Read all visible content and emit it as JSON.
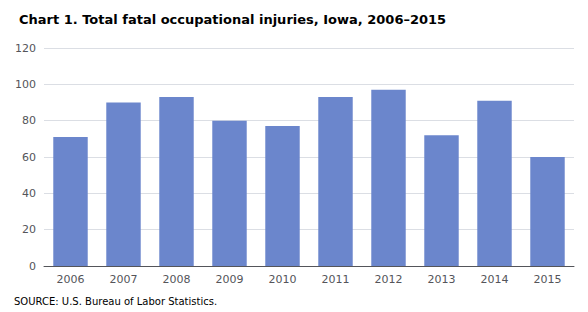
{
  "chart_data": {
    "type": "bar",
    "title": "Chart 1. Total fatal occupational injuries, Iowa, 2006–2015",
    "source": "SOURCE: U.S. Bureau of Labor Statistics.",
    "categories": [
      "2006",
      "2007",
      "2008",
      "2009",
      "2010",
      "2011",
      "2012",
      "2013",
      "2014",
      "2015"
    ],
    "values": [
      71,
      90,
      93,
      80,
      77,
      93,
      97,
      72,
      91,
      60
    ],
    "color": "#6b86cc",
    "ylim": [
      0,
      120
    ],
    "yticks": [
      0,
      20,
      40,
      60,
      80,
      100,
      120
    ],
    "grid": true
  }
}
